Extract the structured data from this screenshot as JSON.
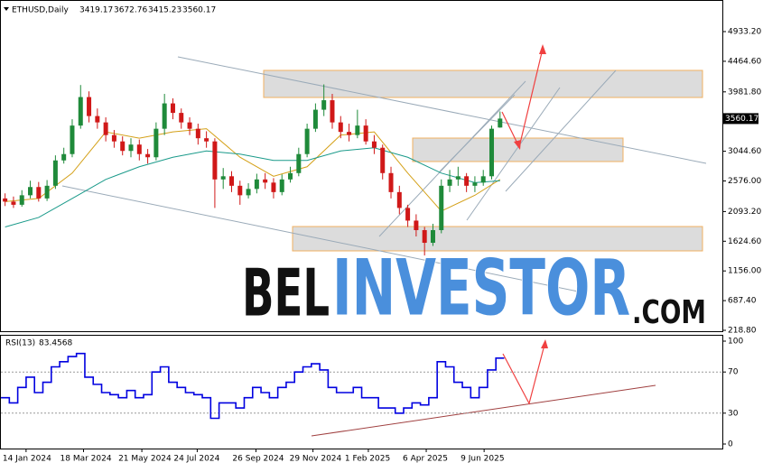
{
  "chart_data": [
    {
      "type": "candlestick",
      "symbol": "ETHUSD,Daily",
      "xlim": [
        -0.5,
        85.5
      ],
      "xticks": [
        {
          "value": 2.5,
          "label": "14 Jan 2024"
        },
        {
          "value": 9.35,
          "label": "18 Mar 2024"
        },
        {
          "value": 16.3,
          "label": "21 May 2024"
        },
        {
          "value": 22.9,
          "label": "24 Jul 2024"
        },
        {
          "value": 29.9,
          "label": "26 Sep 2024"
        },
        {
          "value": 36.7,
          "label": "29 Nov 2024"
        },
        {
          "value": 43.3,
          "label": "1 Feb 2025"
        },
        {
          "value": 50.2,
          "label": "6 Apr 2025"
        },
        {
          "value": 57.1,
          "label": "9 Jun 2025"
        }
      ],
      "ylim": [
        218.8,
        4933.2
      ],
      "yticks": [
        {
          "value": 218.8,
          "label": "218.80"
        },
        {
          "value": 687.4,
          "label": "687.40"
        },
        {
          "value": 1156,
          "label": "1156.00"
        },
        {
          "value": 1624.6,
          "label": "1624.60"
        },
        {
          "value": 2093.2,
          "label": "2093.20"
        },
        {
          "value": 2576,
          "label": "2576.00"
        },
        {
          "value": 3044.6,
          "label": "3044.60"
        },
        {
          "value": 3981.8,
          "label": "3981.80"
        },
        {
          "value": 4464.6,
          "label": "4464.60"
        },
        {
          "value": 4933.2,
          "label": "4933.20"
        }
      ],
      "up_color": "#1f8a3a",
      "down_color": "#d01818",
      "open": [
        2300,
        2250,
        2200,
        2350,
        2480,
        2300,
        2500,
        2900,
        3000,
        3450,
        3900,
        3600,
        3500,
        3300,
        3200,
        3050,
        3150,
        3000,
        2950,
        3400,
        3800,
        3650,
        3500,
        3400,
        3250,
        3200,
        2600,
        2650,
        2500,
        2350,
        2450,
        2600,
        2550,
        2400,
        2600,
        2700,
        3000,
        3400,
        3700,
        3850,
        3500,
        3350,
        3300,
        3450,
        3200,
        3100,
        2700,
        2400,
        2150,
        1950,
        1800,
        1600,
        1800,
        2500,
        2600,
        2650,
        2500,
        2550,
        2650,
        3419.17
      ],
      "high": [
        2380,
        2330,
        2430,
        2580,
        2560,
        2590,
        2980,
        3100,
        3550,
        4090,
        3990,
        3720,
        3580,
        3380,
        3280,
        3250,
        3230,
        3080,
        3500,
        3950,
        3880,
        3720,
        3580,
        3480,
        3360,
        3250,
        2780,
        2730,
        2580,
        2540,
        2690,
        2700,
        2620,
        2680,
        2800,
        3100,
        3480,
        3800,
        4100,
        3950,
        3600,
        3480,
        3700,
        3550,
        3300,
        3150,
        2800,
        2500,
        2200,
        2050,
        1850,
        1900,
        2600,
        2750,
        2800,
        2700,
        2650,
        2750,
        3450,
        3672.76
      ],
      "low": [
        2180,
        2150,
        2170,
        2300,
        2250,
        2260,
        2450,
        2850,
        2950,
        3400,
        3500,
        3400,
        3200,
        3100,
        2980,
        2950,
        2900,
        2850,
        2900,
        3300,
        3550,
        3400,
        3300,
        3150,
        3100,
        2150,
        2450,
        2400,
        2200,
        2300,
        2380,
        2450,
        2300,
        2350,
        2550,
        2650,
        2950,
        3350,
        3600,
        3400,
        3250,
        3200,
        3250,
        3150,
        3000,
        2600,
        2300,
        2050,
        1850,
        1700,
        1400,
        1550,
        1750,
        2400,
        2500,
        2400,
        2400,
        2500,
        2600,
        3415.23
      ],
      "close": [
        2250,
        2200,
        2350,
        2480,
        2300,
        2500,
        2900,
        3000,
        3450,
        3900,
        3600,
        3500,
        3300,
        3200,
        3050,
        3150,
        3000,
        2950,
        3400,
        3800,
        3650,
        3500,
        3400,
        3250,
        3200,
        2600,
        2650,
        2500,
        2350,
        2450,
        2600,
        2550,
        2400,
        2600,
        2700,
        3000,
        3400,
        3700,
        3850,
        3500,
        3350,
        3300,
        3450,
        3200,
        3100,
        2700,
        2400,
        2150,
        1950,
        1800,
        1600,
        1800,
        2500,
        2600,
        2650,
        2500,
        2550,
        2650,
        3400,
        3560.17
      ],
      "series": [
        {
          "color": "#d4a017",
          "x": [
            0,
            4,
            8,
            12,
            16,
            20,
            24,
            28,
            32,
            36,
            40,
            44,
            48,
            52,
            56,
            59
          ],
          "values": [
            2250,
            2300,
            2700,
            3350,
            3250,
            3350,
            3400,
            2950,
            2650,
            2800,
            3300,
            3350,
            2700,
            2100,
            2350,
            2600
          ]
        },
        {
          "color": "#1a9a8a",
          "x": [
            0,
            4,
            8,
            12,
            16,
            20,
            24,
            28,
            32,
            36,
            40,
            44,
            48,
            52,
            56,
            59
          ],
          "values": [
            1850,
            2000,
            2300,
            2600,
            2800,
            2950,
            3050,
            3000,
            2900,
            2900,
            3050,
            3100,
            2950,
            2700,
            2550,
            2580
          ]
        }
      ],
      "watermark": [
        "BEL",
        "INVESTOR",
        ".COM"
      ]
    },
    {
      "type": "line",
      "title": "RSI(13)",
      "xlim": [
        -0.5,
        85.5
      ],
      "ylim": [
        0,
        100
      ],
      "yticks": [
        0,
        30,
        70,
        100
      ],
      "grid": true,
      "series": [
        {
          "color": "#0000e0",
          "values": [
            45,
            40,
            55,
            65,
            50,
            60,
            75,
            80,
            85,
            88,
            65,
            58,
            50,
            48,
            45,
            52,
            45,
            48,
            70,
            75,
            60,
            55,
            50,
            48,
            45,
            25,
            40,
            40,
            35,
            45,
            55,
            50,
            45,
            55,
            60,
            70,
            75,
            78,
            72,
            55,
            50,
            50,
            55,
            45,
            45,
            35,
            35,
            30,
            35,
            40,
            38,
            45,
            80,
            75,
            60,
            55,
            45,
            55,
            72,
            83.4568
          ]
        }
      ]
    }
  ]
}
